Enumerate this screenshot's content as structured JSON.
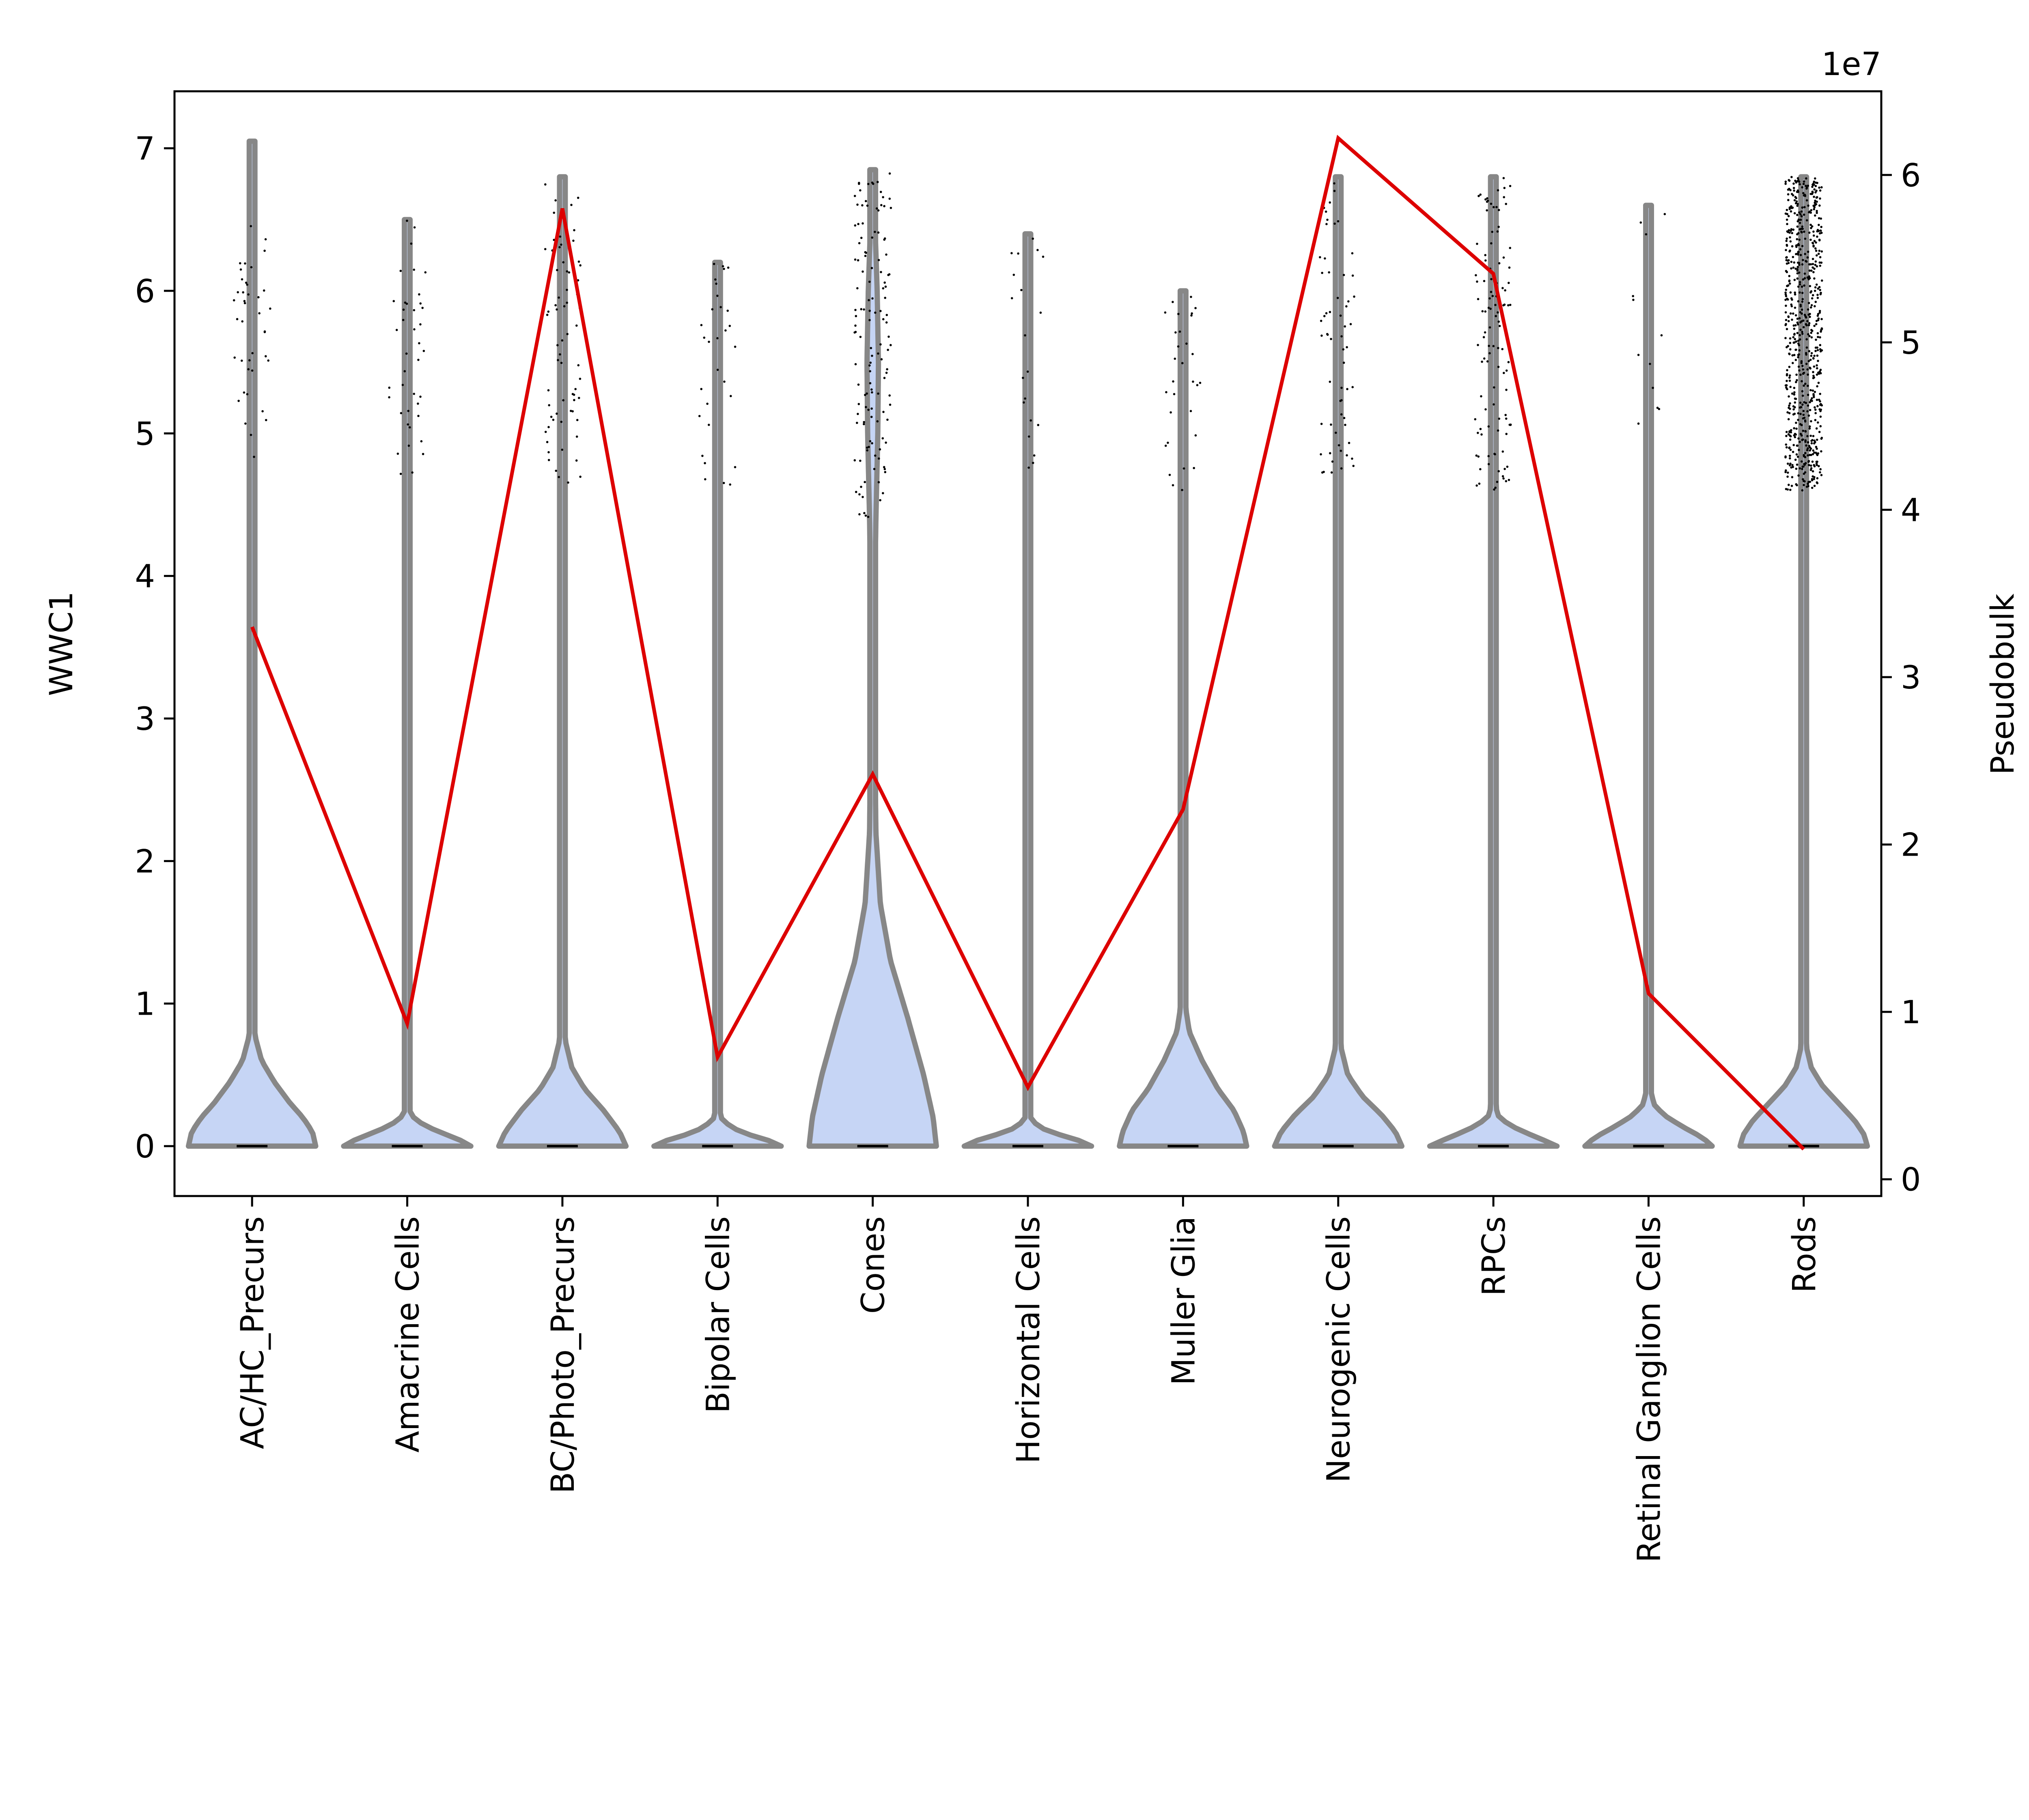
{
  "chart_data": {
    "type": "violin",
    "categories": [
      "AC/HC_Precurs",
      "Amacrine Cells",
      "BC/Photo_Precurs",
      "Bipolar Cells",
      "Cones",
      "Horizontal Cells",
      "Muller Glia",
      "Neurogenic Cells",
      "RPCs",
      "Retinal Ganglion Cells",
      "Rods"
    ],
    "ylabel": "WWC1",
    "y2label": "Pseudobulk",
    "y2_offset_text": "1e7",
    "ylim": [
      -0.35,
      7.4
    ],
    "y2lim": [
      -1000000,
      65000000
    ],
    "yticks": [
      0,
      1,
      2,
      3,
      4,
      5,
      6,
      7
    ],
    "y2ticks": [
      0,
      1,
      2,
      3,
      4,
      5,
      6
    ],
    "violins": [
      {
        "category": "AC/HC_Precurs",
        "max": 7.05,
        "profile": [
          [
            0,
            1.0
          ],
          [
            0.1,
            0.95
          ],
          [
            0.2,
            0.8
          ],
          [
            0.3,
            0.6
          ],
          [
            0.45,
            0.35
          ],
          [
            0.6,
            0.15
          ],
          [
            0.8,
            0.03
          ],
          [
            1.0,
            0.01
          ],
          [
            7.05,
            0.0
          ]
        ],
        "width": 1.0,
        "dots": {
          "n": 40,
          "min": 4.8,
          "max": 6.5
        }
      },
      {
        "category": "Amacrine Cells",
        "max": 6.5,
        "profile": [
          [
            0,
            1.0
          ],
          [
            0.05,
            0.8
          ],
          [
            0.1,
            0.5
          ],
          [
            0.15,
            0.25
          ],
          [
            0.22,
            0.05
          ],
          [
            0.4,
            0.01
          ],
          [
            6.5,
            0.0
          ]
        ],
        "width": 1.0,
        "dots": {
          "n": 40,
          "min": 4.7,
          "max": 6.5
        }
      },
      {
        "category": "BC/Photo_Precurs",
        "max": 6.8,
        "profile": [
          [
            0,
            1.0
          ],
          [
            0.1,
            0.9
          ],
          [
            0.25,
            0.65
          ],
          [
            0.4,
            0.35
          ],
          [
            0.55,
            0.15
          ],
          [
            0.75,
            0.04
          ],
          [
            1.0,
            0.01
          ],
          [
            6.8,
            0.0
          ]
        ],
        "width": 1.0,
        "dots": {
          "n": 70,
          "min": 4.6,
          "max": 6.8
        }
      },
      {
        "category": "Bipolar Cells",
        "max": 6.2,
        "profile": [
          [
            0,
            1.0
          ],
          [
            0.04,
            0.8
          ],
          [
            0.08,
            0.5
          ],
          [
            0.13,
            0.22
          ],
          [
            0.2,
            0.05
          ],
          [
            0.35,
            0.01
          ],
          [
            6.2,
            0.0
          ]
        ],
        "width": 1.0,
        "dots": {
          "n": 30,
          "min": 4.6,
          "max": 6.2
        }
      },
      {
        "category": "Cones",
        "max": 6.85,
        "profile": [
          [
            0,
            1.0
          ],
          [
            0.2,
            0.95
          ],
          [
            0.5,
            0.8
          ],
          [
            0.9,
            0.55
          ],
          [
            1.3,
            0.28
          ],
          [
            1.7,
            0.12
          ],
          [
            2.2,
            0.05
          ],
          [
            3.0,
            0.03
          ],
          [
            3.8,
            0.03
          ],
          [
            4.4,
            0.05
          ],
          [
            5.0,
            0.08
          ],
          [
            5.5,
            0.09
          ],
          [
            6.0,
            0.07
          ],
          [
            6.4,
            0.04
          ],
          [
            6.85,
            0.0
          ]
        ],
        "width": 1.0,
        "dots": {
          "n": 130,
          "min": 4.4,
          "max": 6.85
        }
      },
      {
        "category": "Horizontal Cells",
        "max": 6.4,
        "profile": [
          [
            0,
            1.0
          ],
          [
            0.04,
            0.8
          ],
          [
            0.08,
            0.5
          ],
          [
            0.12,
            0.25
          ],
          [
            0.18,
            0.05
          ],
          [
            0.35,
            0.01
          ],
          [
            6.4,
            0.0
          ]
        ],
        "width": 1.0,
        "dots": {
          "n": 20,
          "min": 4.6,
          "max": 6.4
        }
      },
      {
        "category": "Muller Glia",
        "max": 6.0,
        "profile": [
          [
            0,
            1.0
          ],
          [
            0.1,
            0.95
          ],
          [
            0.25,
            0.8
          ],
          [
            0.4,
            0.55
          ],
          [
            0.6,
            0.3
          ],
          [
            0.8,
            0.1
          ],
          [
            1.0,
            0.03
          ],
          [
            1.3,
            0.01
          ],
          [
            6.0,
            0.0
          ]
        ],
        "width": 1.0,
        "dots": {
          "n": 30,
          "min": 4.6,
          "max": 6.0
        }
      },
      {
        "category": "Neurogenic Cells",
        "max": 6.8,
        "profile": [
          [
            0,
            1.0
          ],
          [
            0.1,
            0.9
          ],
          [
            0.22,
            0.68
          ],
          [
            0.35,
            0.38
          ],
          [
            0.5,
            0.15
          ],
          [
            0.7,
            0.04
          ],
          [
            1.0,
            0.01
          ],
          [
            6.8,
            0.0
          ]
        ],
        "width": 1.0,
        "dots": {
          "n": 60,
          "min": 4.7,
          "max": 6.8
        }
      },
      {
        "category": "RPCs",
        "max": 6.8,
        "profile": [
          [
            0,
            1.0
          ],
          [
            0.05,
            0.75
          ],
          [
            0.1,
            0.48
          ],
          [
            0.15,
            0.24
          ],
          [
            0.22,
            0.06
          ],
          [
            0.4,
            0.01
          ],
          [
            6.8,
            0.0
          ]
        ],
        "width": 1.0,
        "dots": {
          "n": 110,
          "min": 4.6,
          "max": 6.8
        }
      },
      {
        "category": "Retinal Ganglion Cells",
        "max": 6.6,
        "profile": [
          [
            0,
            1.0
          ],
          [
            0.06,
            0.85
          ],
          [
            0.12,
            0.6
          ],
          [
            0.2,
            0.3
          ],
          [
            0.28,
            0.1
          ],
          [
            0.4,
            0.02
          ],
          [
            6.6,
            0.0
          ]
        ],
        "width": 1.0,
        "dots": {
          "n": 12,
          "min": 4.6,
          "max": 6.6
        }
      },
      {
        "category": "Rods",
        "max": 6.8,
        "profile": [
          [
            0,
            1.0
          ],
          [
            0.08,
            0.95
          ],
          [
            0.18,
            0.8
          ],
          [
            0.3,
            0.55
          ],
          [
            0.42,
            0.3
          ],
          [
            0.55,
            0.12
          ],
          [
            0.7,
            0.04
          ],
          [
            0.9,
            0.01
          ],
          [
            6.8,
            0.0
          ]
        ],
        "width": 1.0,
        "dots": {
          "n": 700,
          "min": 4.6,
          "max": 6.8
        }
      }
    ],
    "pseudobulk_line": {
      "x": [
        "AC/HC_Precurs",
        "Amacrine Cells",
        "BC/Photo_Precurs",
        "Bipolar Cells",
        "Cones",
        "Horizontal Cells",
        "Muller Glia",
        "Neurogenic Cells",
        "RPCs",
        "Retinal Ganglion Cells",
        "Rods"
      ],
      "values": [
        33000000,
        9300000,
        58000000,
        7300000,
        24200000,
        5500000,
        22100000,
        62200000,
        54100000,
        11100000,
        1800000
      ],
      "color": "#dd0000"
    },
    "colors": {
      "violin_fill": "#c6d5f5",
      "violin_edge": "#878787",
      "axis": "#000000"
    }
  }
}
